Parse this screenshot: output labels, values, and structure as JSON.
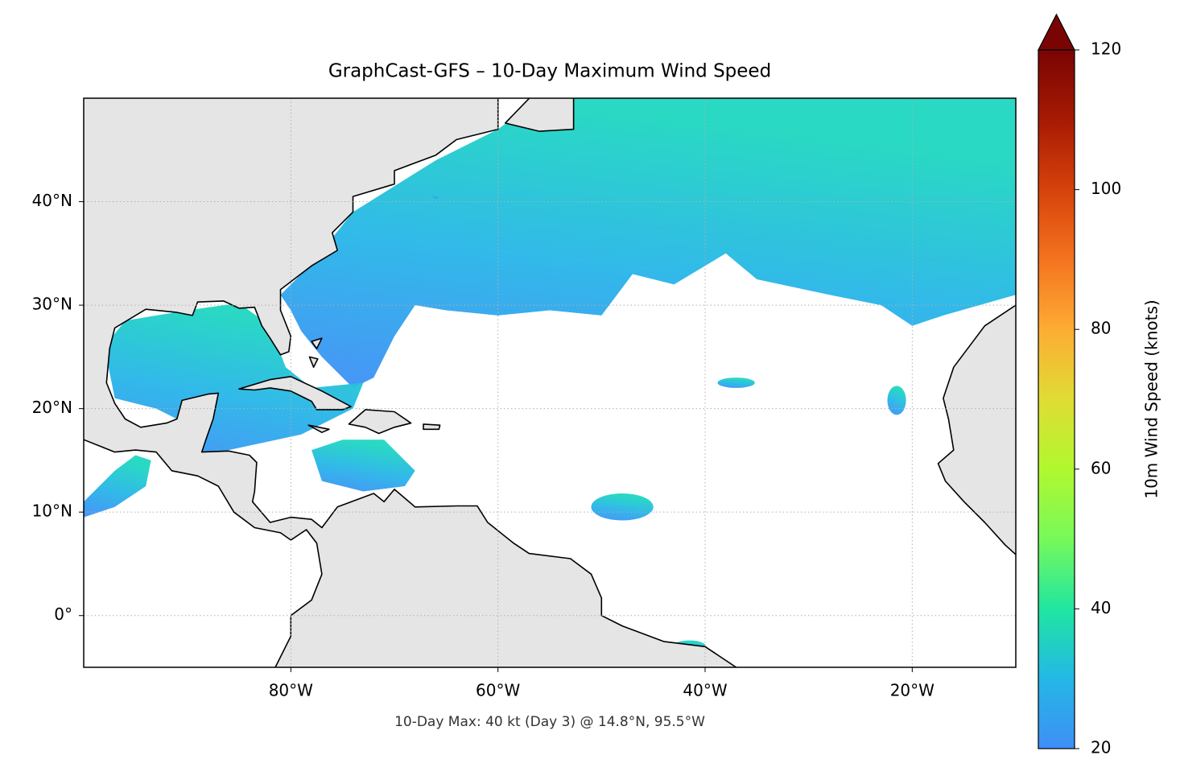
{
  "map": {
    "title": "GraphCast-GFS – 10-Day Maximum Wind Speed",
    "annotation": "10-Day Max: 40 kt (Day 3) @ 14.8°N, 95.5°W",
    "xlim": [
      -100,
      -10
    ],
    "ylim": [
      -5,
      50
    ],
    "xticks": [
      {
        "value": -80,
        "label": "80°W"
      },
      {
        "value": -60,
        "label": "60°W"
      },
      {
        "value": -40,
        "label": "40°W"
      },
      {
        "value": -20,
        "label": "20°W"
      }
    ],
    "yticks": [
      {
        "value": 0,
        "label": "0°"
      },
      {
        "value": 10,
        "label": "10°N"
      },
      {
        "value": 20,
        "label": "20°N"
      },
      {
        "value": 30,
        "label": "30°N"
      },
      {
        "value": 40,
        "label": "40°N"
      }
    ],
    "grid": true,
    "colorbar": {
      "label": "10m Wind Speed (knots)",
      "lim": [
        20,
        120
      ],
      "ticks": [
        20,
        40,
        60,
        80,
        100,
        120
      ],
      "extend": "max"
    }
  }
}
